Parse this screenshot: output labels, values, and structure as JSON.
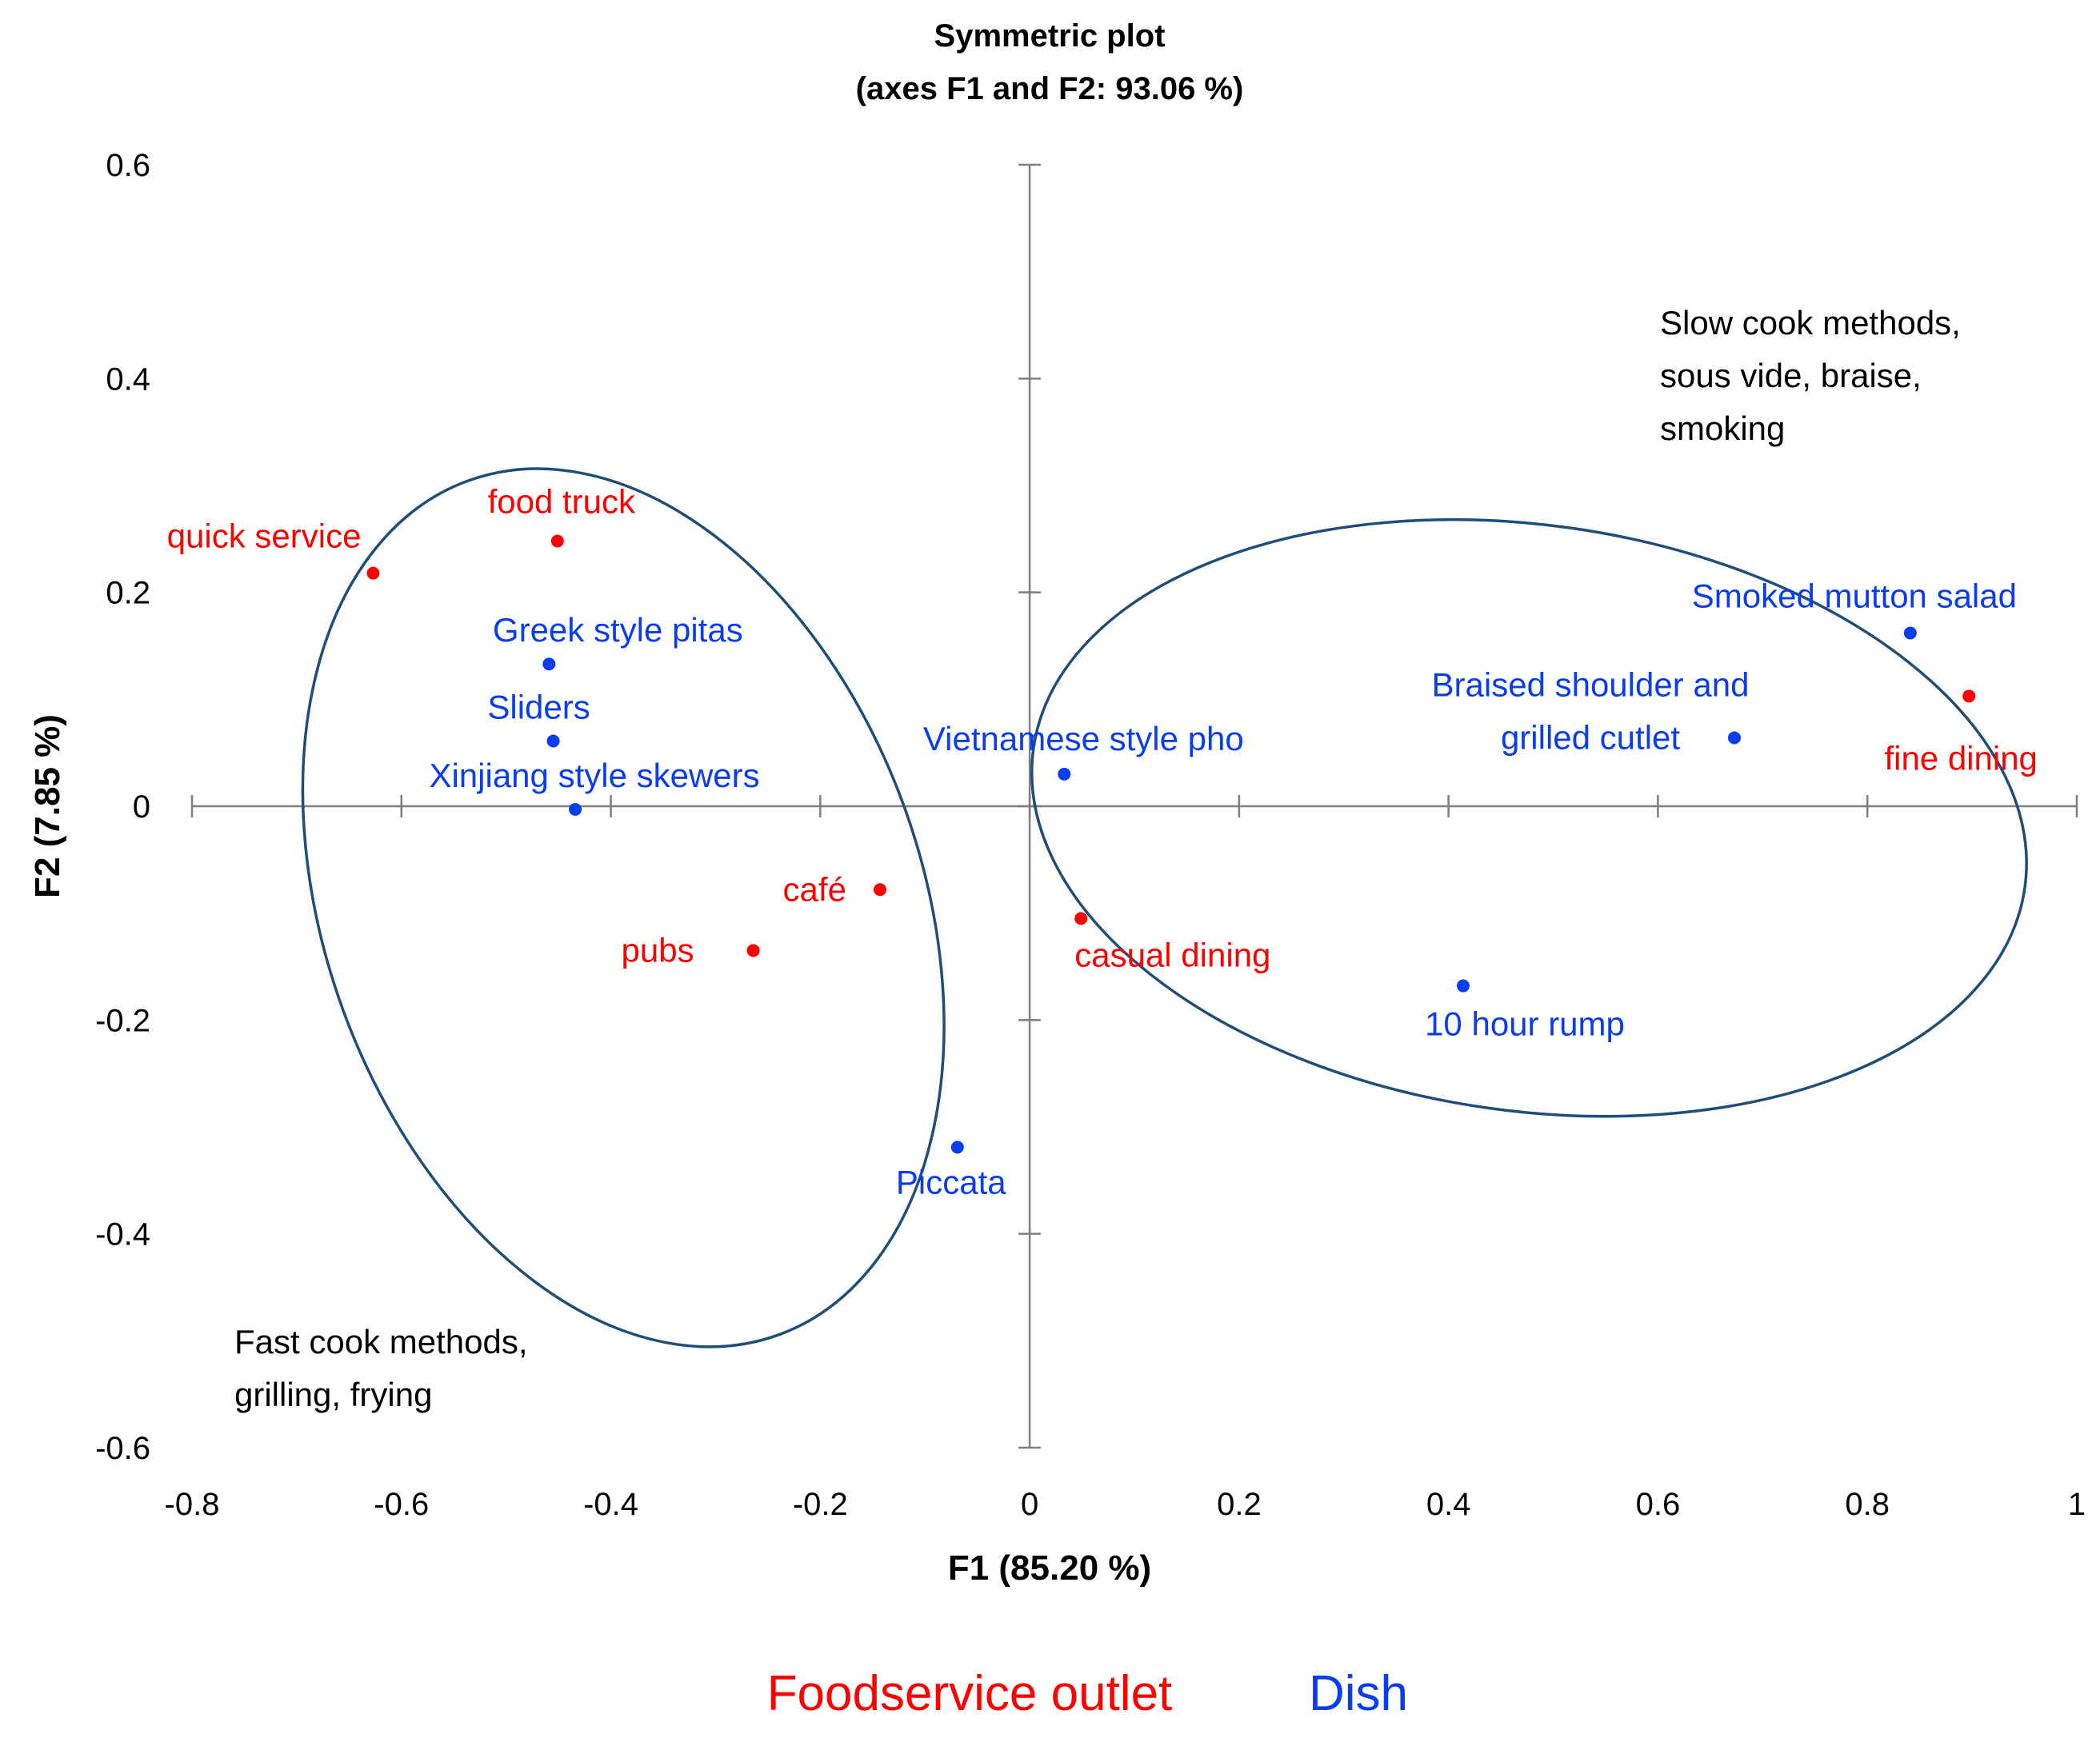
{
  "chart_data": {
    "type": "scatter",
    "title": "Symmetric plot",
    "subtitle": "(axes F1 and F2: 93.06 %)",
    "xlabel": "F1 (85.20 %)",
    "ylabel": "F2 (7.85 %)",
    "xlim": [
      -0.8,
      1
    ],
    "ylim": [
      -0.6,
      0.6
    ],
    "xticks": [
      "-0.8",
      "-0.6",
      "-0.4",
      "-0.2",
      "0",
      "0.2",
      "0.4",
      "0.6",
      "0.8",
      "1"
    ],
    "xtick_values": [
      -0.8,
      -0.6,
      -0.4,
      -0.2,
      0,
      0.2,
      0.4,
      0.6,
      0.8,
      1
    ],
    "yticks": [
      "0.6",
      "0.4",
      "0.2",
      "0",
      "-0.2",
      "-0.4",
      "-0.6"
    ],
    "ytick_values": [
      0.6,
      0.4,
      0.2,
      0,
      -0.2,
      -0.4,
      -0.6
    ],
    "grid": false,
    "legend_placement": "bottom-center",
    "series": [
      {
        "name": "Foodservice outlet",
        "color": "#ff0000",
        "points": [
          {
            "label": "food truck",
            "x": -0.451,
            "y": 0.248
          },
          {
            "label": "quick service",
            "x": -0.627,
            "y": 0.218
          },
          {
            "label": "café",
            "x": -0.143,
            "y": -0.078
          },
          {
            "label": "pubs",
            "x": -0.264,
            "y": -0.135
          },
          {
            "label": "casual dining",
            "x": 0.049,
            "y": -0.105
          },
          {
            "label": "fine dining",
            "x": 0.897,
            "y": 0.103
          }
        ]
      },
      {
        "name": "Dish",
        "color": "#0a3cf0",
        "points": [
          {
            "label": "Greek style pitas",
            "x": -0.459,
            "y": 0.133
          },
          {
            "label": "Sliders",
            "x": -0.455,
            "y": 0.061
          },
          {
            "label": "Xinjiang style skewers",
            "x": -0.434,
            "y": -0.003
          },
          {
            "label": "Vietnamese style pho",
            "x": 0.033,
            "y": 0.03
          },
          {
            "label": "Piccata",
            "x": -0.069,
            "y": -0.319
          },
          {
            "label": "Braised shoulder and grilled cutlet",
            "label_lines": [
              "Braised shoulder and",
              "grilled cutlet"
            ],
            "x": 0.673,
            "y": 0.064
          },
          {
            "label": "Smoked mutton salad",
            "x": 0.841,
            "y": 0.162
          },
          {
            "label": "10 hour rump",
            "x": 0.414,
            "y": -0.168
          }
        ]
      }
    ],
    "annotations": {
      "slow": [
        "Slow cook methods,",
        "sous vide, braise,",
        "smoking"
      ],
      "fast": [
        "Fast cook methods,",
        "grilling, frying"
      ]
    },
    "ellipse_color": "#1f4e79",
    "ellipses": [
      {
        "name": "fast-cook-group",
        "cx": -0.388,
        "cy": -0.095,
        "rx": 0.285,
        "ry": 0.425,
        "rotation": -20
      },
      {
        "name": "slow-cook-group",
        "cx": 0.477,
        "cy": -0.011,
        "rx": 0.478,
        "ry": 0.274,
        "rotation": 8
      }
    ]
  }
}
